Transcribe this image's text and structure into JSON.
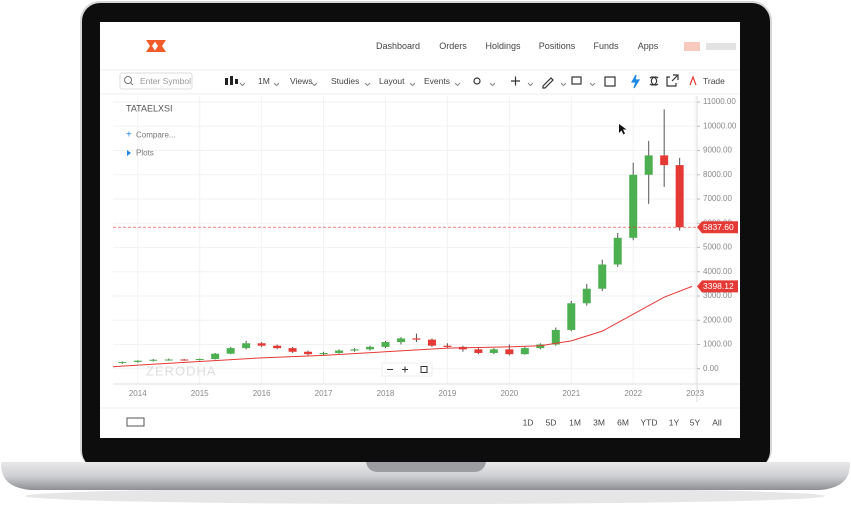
{
  "header": {
    "nav": [
      "Dashboard",
      "Orders",
      "Holdings",
      "Positions",
      "Funds",
      "Apps"
    ]
  },
  "toolbar": {
    "search_placeholder": "Enter Symbol",
    "interval": "1M",
    "menus": [
      "Views",
      "Studies",
      "Layout",
      "Events"
    ],
    "trade": "Trade"
  },
  "chart_overlay": {
    "symbol": "TATAELXSI",
    "compare": "Compare...",
    "plots": "Plots",
    "watermark": "ZERODHA"
  },
  "footer": {
    "ranges": [
      "1D",
      "5D",
      "1M",
      "3M",
      "6M",
      "YTD",
      "1Y",
      "5Y",
      "All"
    ]
  },
  "chart_data": {
    "type": "candlestick",
    "x": [
      2013.75,
      2014.0,
      2014.25,
      2014.5,
      2014.75,
      2015.0,
      2015.25,
      2015.5,
      2015.75,
      2016.0,
      2016.25,
      2016.5,
      2016.75,
      2017.0,
      2017.25,
      2017.5,
      2017.75,
      2018.0,
      2018.25,
      2018.5,
      2018.75,
      2019.0,
      2019.25,
      2019.5,
      2019.75,
      2020.0,
      2020.25,
      2020.5,
      2020.75,
      2021.0,
      2021.25,
      2021.5,
      2021.75,
      2022.0,
      2022.25,
      2022.5,
      2022.75
    ],
    "open": [
      250,
      280,
      330,
      370,
      380,
      360,
      400,
      620,
      850,
      1050,
      950,
      850,
      700,
      600,
      650,
      750,
      800,
      900,
      1100,
      1250,
      1200,
      950,
      900,
      800,
      650,
      800,
      600,
      850,
      1000,
      1600,
      2700,
      3300,
      4300,
      5400,
      8000,
      8800,
      8400
    ],
    "high": [
      300,
      350,
      400,
      420,
      400,
      420,
      650,
      900,
      1150,
      1100,
      1000,
      900,
      750,
      700,
      800,
      850,
      950,
      1150,
      1300,
      1450,
      1250,
      1050,
      950,
      850,
      850,
      1000,
      900,
      1050,
      1700,
      2800,
      3500,
      4500,
      5600,
      8500,
      9400,
      10700,
      8700
    ],
    "low": [
      200,
      250,
      300,
      330,
      330,
      340,
      380,
      600,
      800,
      900,
      800,
      650,
      550,
      550,
      620,
      700,
      750,
      850,
      1000,
      1100,
      900,
      850,
      700,
      600,
      600,
      550,
      580,
      800,
      950,
      1550,
      2600,
      3200,
      4200,
      5300,
      6800,
      7500,
      5700
    ],
    "close": [
      280,
      330,
      370,
      380,
      360,
      400,
      620,
      850,
      1050,
      950,
      850,
      700,
      600,
      650,
      750,
      800,
      900,
      1100,
      1250,
      1200,
      950,
      900,
      800,
      650,
      800,
      600,
      850,
      1000,
      1600,
      2700,
      3300,
      4300,
      5400,
      8000,
      8800,
      8400,
      5837.6
    ],
    "up_color": "#4caf50",
    "down_color": "#e53935",
    "ma": {
      "color": "#e53935",
      "x": [
        2013.6,
        2014,
        2015,
        2016,
        2017,
        2018,
        2019,
        2020,
        2020.5,
        2021,
        2021.5,
        2022,
        2022.5,
        2022.95
      ],
      "values": [
        80,
        150,
        300,
        450,
        550,
        700,
        850,
        900,
        950,
        1150,
        1550,
        2250,
        2950,
        3398.12
      ]
    },
    "last_price": {
      "value": 5837.6,
      "label": "5837.60"
    },
    "ma_last": {
      "value": 3398.12,
      "label": "3398.12"
    },
    "xlim": [
      2013.6,
      2023.03
    ],
    "xticks": [
      2014,
      2015,
      2016,
      2017,
      2018,
      2019,
      2020,
      2021,
      2022,
      2023
    ],
    "ylim": [
      -630,
      11250
    ],
    "yticks": [
      {
        "value": 0,
        "label": "0.00"
      },
      {
        "value": 1000,
        "label": "1000.00"
      },
      {
        "value": 2000,
        "label": "2000.00"
      },
      {
        "value": 3000,
        "label": "3000.00"
      },
      {
        "value": 4000,
        "label": "4000.00"
      },
      {
        "value": 5000,
        "label": "5000.00"
      },
      {
        "value": 6000,
        "label": "6000.00"
      },
      {
        "value": 7000,
        "label": "7000.00"
      },
      {
        "value": 8000,
        "label": "8000.00"
      },
      {
        "value": 9000,
        "label": "9000.00"
      },
      {
        "value": 10000,
        "label": "10000.00"
      },
      {
        "value": 11000,
        "label": "11000.00"
      }
    ],
    "grid": true
  }
}
